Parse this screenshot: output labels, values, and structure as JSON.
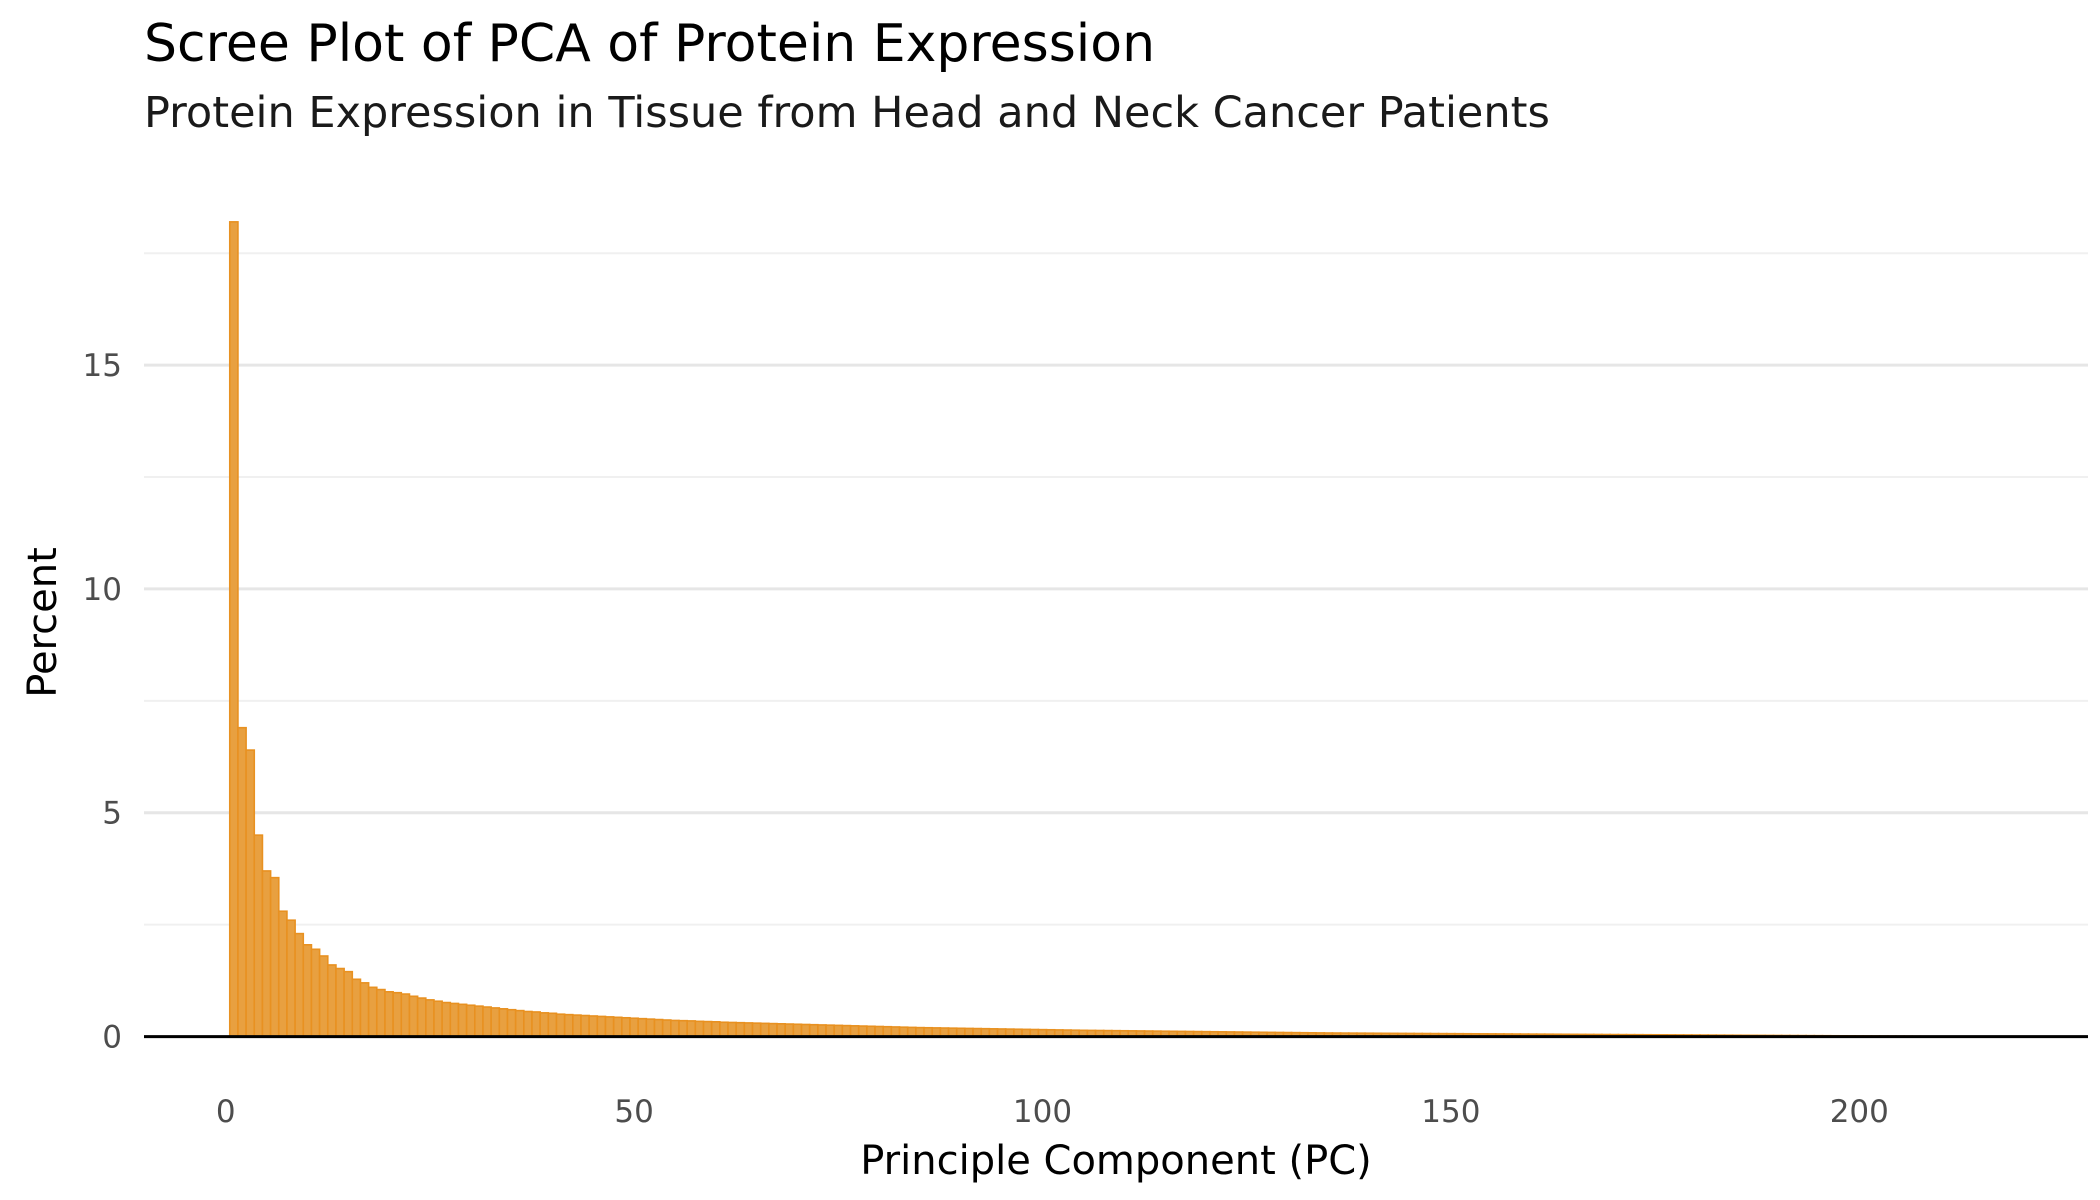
{
  "chart_data": {
    "type": "bar",
    "title": "Scree Plot of PCA of Protein Expression",
    "subtitle": "Protein Expression in Tissue from Head and Neck Cancer Patients",
    "xlabel": "Principle Component (PC)",
    "ylabel": "Percent",
    "xlim": [
      -10,
      228
    ],
    "ylim": [
      -0.3,
      18.8
    ],
    "x_ticks": [
      0,
      50,
      100,
      150,
      200
    ],
    "y_ticks": [
      0,
      5,
      10,
      15
    ],
    "grid": true,
    "bar_color": "#E89121",
    "bar_fill": "#E8A040",
    "n_components": 218,
    "values": [
      18.2,
      6.9,
      6.4,
      4.5,
      3.7,
      3.55,
      2.8,
      2.6,
      2.3,
      2.05,
      1.95,
      1.8,
      1.6,
      1.52,
      1.45,
      1.28,
      1.2,
      1.1,
      1.05,
      1.0,
      0.98,
      0.95,
      0.9,
      0.86,
      0.82,
      0.79,
      0.76,
      0.74,
      0.72,
      0.7,
      0.68,
      0.66,
      0.64,
      0.62,
      0.6,
      0.58,
      0.56,
      0.55,
      0.53,
      0.52,
      0.5,
      0.49,
      0.48,
      0.47,
      0.46,
      0.45,
      0.44,
      0.43,
      0.42,
      0.41,
      0.4,
      0.39,
      0.38,
      0.37,
      0.36,
      0.355,
      0.35,
      0.34,
      0.335,
      0.33,
      0.32,
      0.315,
      0.31,
      0.305,
      0.3,
      0.295,
      0.29,
      0.285,
      0.28,
      0.275,
      0.27,
      0.265,
      0.26,
      0.255,
      0.25,
      0.245,
      0.24,
      0.235,
      0.23,
      0.225,
      0.22,
      0.215,
      0.21,
      0.205,
      0.2,
      0.197,
      0.194,
      0.191,
      0.188,
      0.185,
      0.182,
      0.179,
      0.176,
      0.173,
      0.17,
      0.167,
      0.164,
      0.161,
      0.158,
      0.155,
      0.152,
      0.149,
      0.146,
      0.143,
      0.14,
      0.138,
      0.136,
      0.134,
      0.132,
      0.13,
      0.128,
      0.126,
      0.124,
      0.122,
      0.12,
      0.118,
      0.116,
      0.114,
      0.112,
      0.11,
      0.108,
      0.106,
      0.104,
      0.102,
      0.1,
      0.098,
      0.096,
      0.094,
      0.092,
      0.09,
      0.088,
      0.086,
      0.084,
      0.082,
      0.08,
      0.079,
      0.078,
      0.077,
      0.076,
      0.075,
      0.074,
      0.073,
      0.072,
      0.071,
      0.07,
      0.069,
      0.068,
      0.067,
      0.066,
      0.065,
      0.064,
      0.063,
      0.062,
      0.061,
      0.06,
      0.059,
      0.058,
      0.057,
      0.056,
      0.055,
      0.054,
      0.053,
      0.052,
      0.051,
      0.05,
      0.049,
      0.048,
      0.047,
      0.046,
      0.045,
      0.044,
      0.043,
      0.042,
      0.041,
      0.04,
      0.039,
      0.038,
      0.037,
      0.036,
      0.035,
      0.034,
      0.033,
      0.032,
      0.031,
      0.03,
      0.029,
      0.028,
      0.027,
      0.026,
      0.025,
      0.024,
      0.023,
      0.022,
      0.021,
      0.02,
      0.019,
      0.018,
      0.017,
      0.016,
      0.015,
      0.014,
      0.013,
      0.012,
      0.011,
      0.01,
      0.009,
      0.008,
      0.007,
      0.006,
      0.005,
      0.004,
      0.003,
      0.002,
      0.001,
      0.001,
      0.0005,
      0.0002,
      0.0001
    ]
  }
}
